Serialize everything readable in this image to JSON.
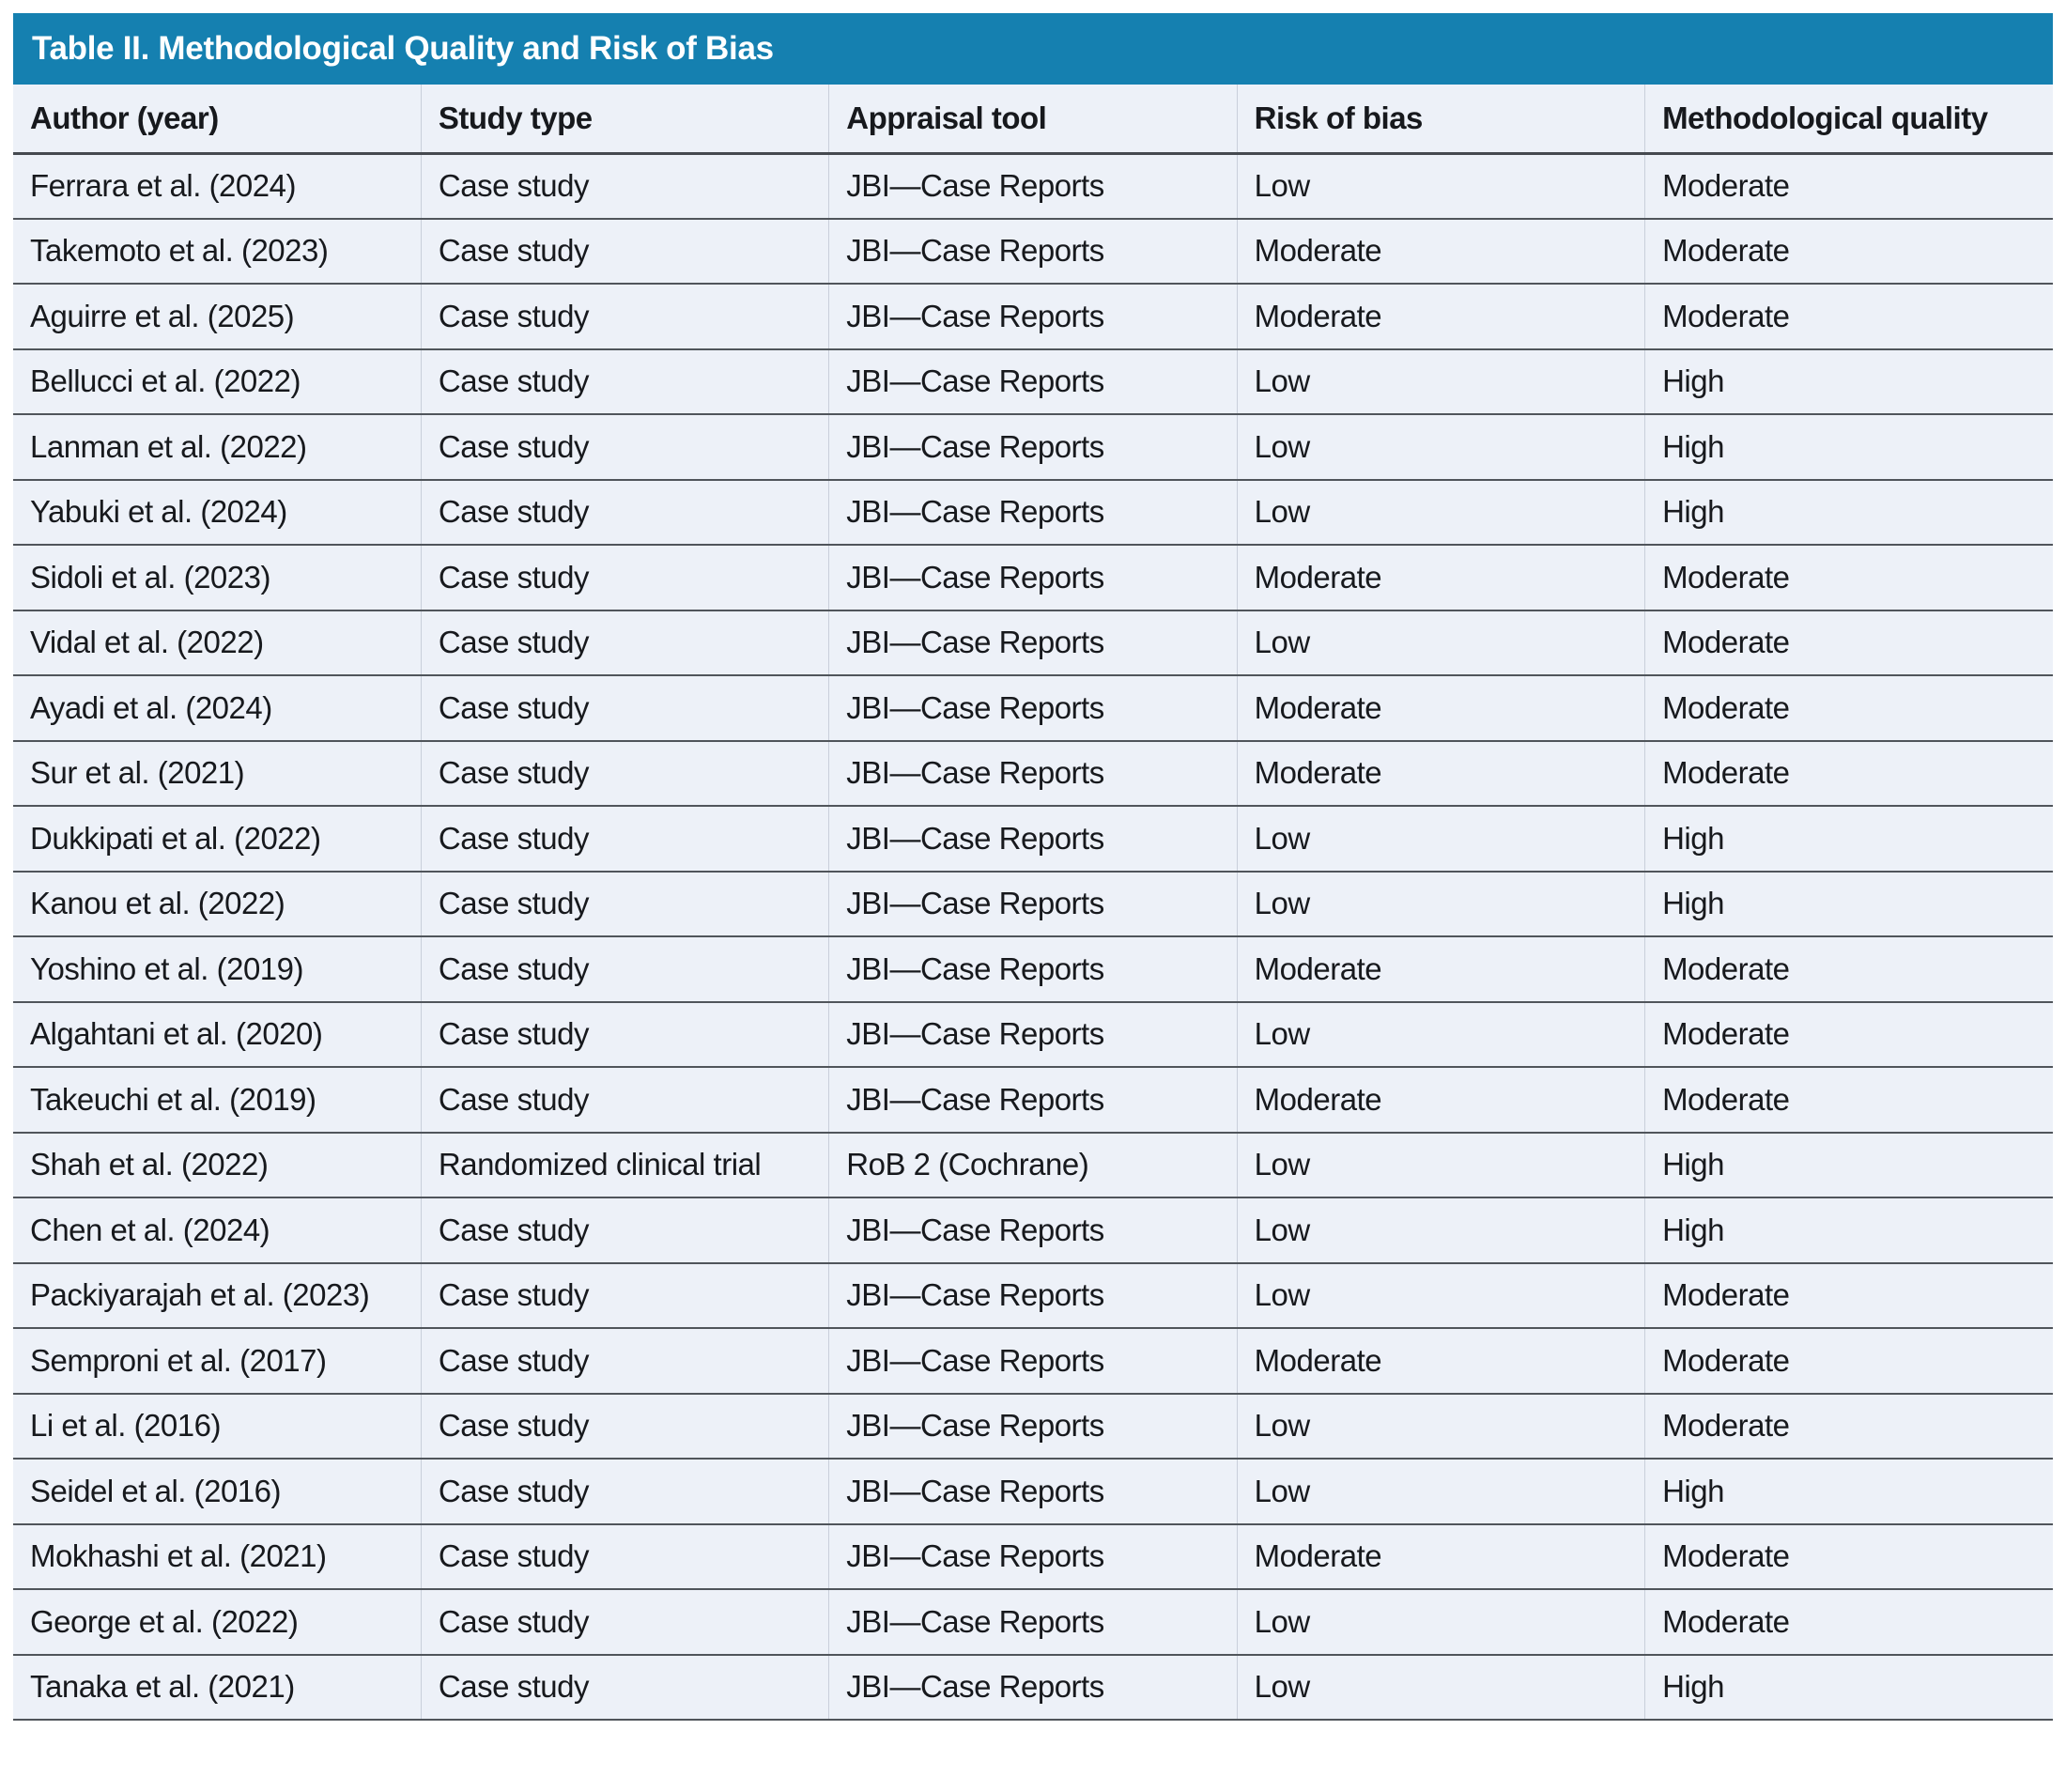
{
  "colors": {
    "accent_teal": "#1580b0",
    "row_background": "#edf1f8",
    "divider_dark": "#50555b",
    "title_text": "#ffffff"
  },
  "table": {
    "title": "Table II. Methodological Quality and Risk of Bias",
    "columns": [
      "Author (year)",
      "Study type",
      "Appraisal tool",
      "Risk of bias",
      "Methodological quality"
    ],
    "rows": [
      {
        "author": "Ferrara et al. (2024)",
        "study_type": "Case study",
        "appraisal_tool": "JBI—Case Reports",
        "risk_of_bias": "Low",
        "methodological_quality": "Moderate"
      },
      {
        "author": "Takemoto et al. (2023)",
        "study_type": "Case study",
        "appraisal_tool": "JBI—Case Reports",
        "risk_of_bias": "Moderate",
        "methodological_quality": "Moderate"
      },
      {
        "author": "Aguirre et al. (2025)",
        "study_type": "Case study",
        "appraisal_tool": "JBI—Case Reports",
        "risk_of_bias": "Moderate",
        "methodological_quality": "Moderate"
      },
      {
        "author": "Bellucci et al. (2022)",
        "study_type": "Case study",
        "appraisal_tool": "JBI—Case Reports",
        "risk_of_bias": "Low",
        "methodological_quality": "High"
      },
      {
        "author": "Lanman et al. (2022)",
        "study_type": "Case study",
        "appraisal_tool": "JBI—Case Reports",
        "risk_of_bias": "Low",
        "methodological_quality": "High"
      },
      {
        "author": "Yabuki et al. (2024)",
        "study_type": "Case study",
        "appraisal_tool": "JBI—Case Reports",
        "risk_of_bias": "Low",
        "methodological_quality": "High"
      },
      {
        "author": "Sidoli et al. (2023)",
        "study_type": "Case study",
        "appraisal_tool": "JBI—Case Reports",
        "risk_of_bias": "Moderate",
        "methodological_quality": "Moderate"
      },
      {
        "author": "Vidal et al. (2022)",
        "study_type": "Case study",
        "appraisal_tool": "JBI—Case Reports",
        "risk_of_bias": "Low",
        "methodological_quality": "Moderate"
      },
      {
        "author": "Ayadi et al. (2024)",
        "study_type": "Case study",
        "appraisal_tool": "JBI—Case Reports",
        "risk_of_bias": "Moderate",
        "methodological_quality": "Moderate"
      },
      {
        "author": "Sur et al. (2021)",
        "study_type": "Case study",
        "appraisal_tool": "JBI—Case Reports",
        "risk_of_bias": "Moderate",
        "methodological_quality": "Moderate"
      },
      {
        "author": "Dukkipati et al. (2022)",
        "study_type": "Case study",
        "appraisal_tool": "JBI—Case Reports",
        "risk_of_bias": "Low",
        "methodological_quality": "High"
      },
      {
        "author": "Kanou et al. (2022)",
        "study_type": "Case study",
        "appraisal_tool": "JBI—Case Reports",
        "risk_of_bias": "Low",
        "methodological_quality": "High"
      },
      {
        "author": "Yoshino et al. (2019)",
        "study_type": "Case study",
        "appraisal_tool": "JBI—Case Reports",
        "risk_of_bias": "Moderate",
        "methodological_quality": "Moderate"
      },
      {
        "author": "Algahtani et al. (2020)",
        "study_type": "Case study",
        "appraisal_tool": "JBI—Case Reports",
        "risk_of_bias": "Low",
        "methodological_quality": "Moderate"
      },
      {
        "author": "Takeuchi et al. (2019)",
        "study_type": "Case study",
        "appraisal_tool": "JBI—Case Reports",
        "risk_of_bias": "Moderate",
        "methodological_quality": "Moderate"
      },
      {
        "author": "Shah et al. (2022)",
        "study_type": "Randomized clinical trial",
        "appraisal_tool": "RoB 2 (Cochrane)",
        "risk_of_bias": "Low",
        "methodological_quality": "High"
      },
      {
        "author": "Chen et al. (2024)",
        "study_type": "Case study",
        "appraisal_tool": "JBI—Case Reports",
        "risk_of_bias": "Low",
        "methodological_quality": "High"
      },
      {
        "author": "Packiyarajah et al. (2023)",
        "study_type": "Case study",
        "appraisal_tool": "JBI—Case Reports",
        "risk_of_bias": "Low",
        "methodological_quality": "Moderate"
      },
      {
        "author": "Semproni et al. (2017)",
        "study_type": "Case study",
        "appraisal_tool": "JBI—Case Reports",
        "risk_of_bias": "Moderate",
        "methodological_quality": "Moderate"
      },
      {
        "author": "Li et al. (2016)",
        "study_type": "Case study",
        "appraisal_tool": "JBI—Case Reports",
        "risk_of_bias": "Low",
        "methodological_quality": "Moderate"
      },
      {
        "author": "Seidel et al. (2016)",
        "study_type": "Case study",
        "appraisal_tool": "JBI—Case Reports",
        "risk_of_bias": "Low",
        "methodological_quality": "High"
      },
      {
        "author": "Mokhashi et al. (2021)",
        "study_type": "Case study",
        "appraisal_tool": "JBI—Case Reports",
        "risk_of_bias": "Moderate",
        "methodological_quality": "Moderate"
      },
      {
        "author": "George et al. (2022)",
        "study_type": "Case study",
        "appraisal_tool": "JBI—Case Reports",
        "risk_of_bias": "Low",
        "methodological_quality": "Moderate"
      },
      {
        "author": "Tanaka et al. (2021)",
        "study_type": "Case study",
        "appraisal_tool": "JBI—Case Reports",
        "risk_of_bias": "Low",
        "methodological_quality": "High"
      }
    ]
  }
}
